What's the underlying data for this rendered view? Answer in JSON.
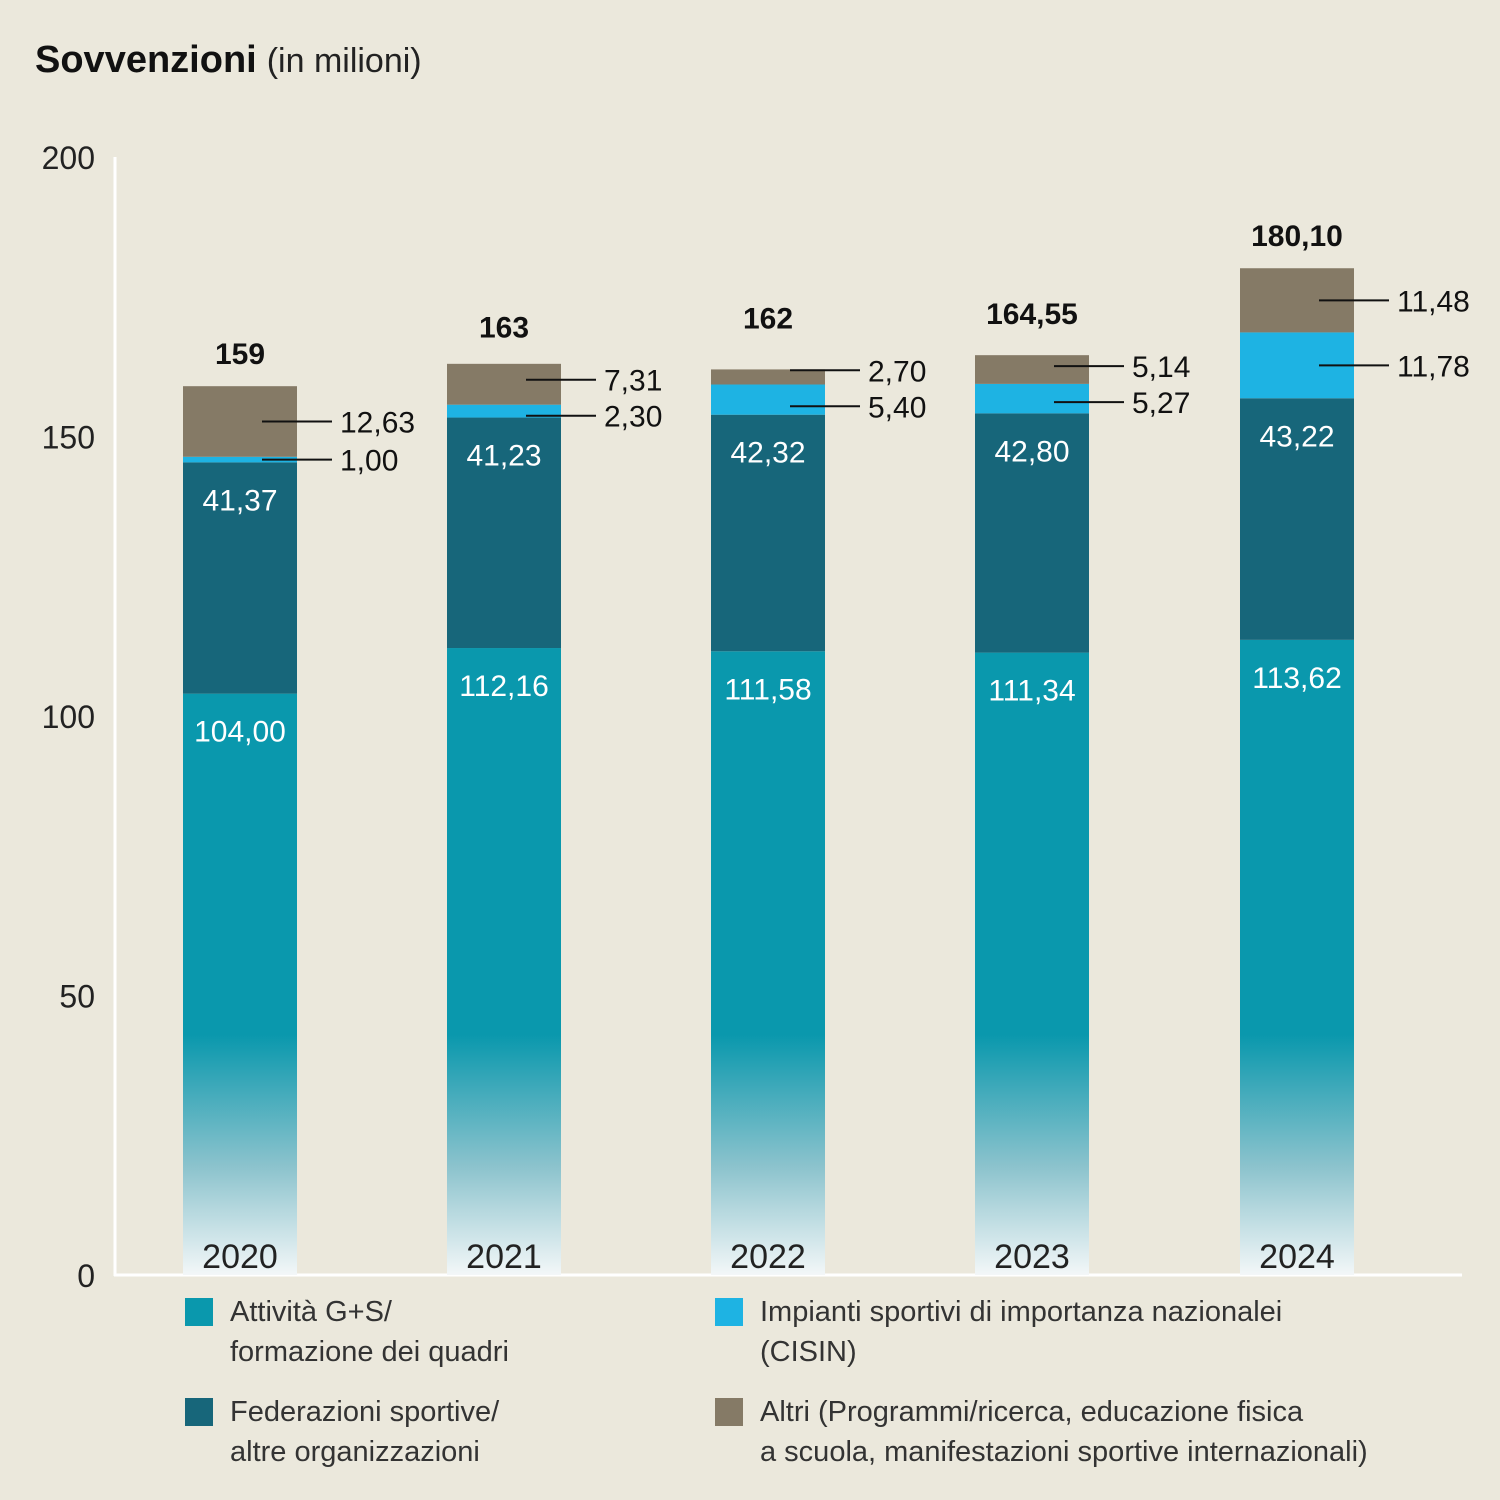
{
  "chart_data": {
    "type": "bar",
    "stacked": true,
    "title": "Sovvenzioni",
    "subtitle": "(in milioni)",
    "categories": [
      "2020",
      "2021",
      "2022",
      "2023",
      "2024"
    ],
    "ylim": [
      0,
      200
    ],
    "yticks": [
      "0",
      "50",
      "100",
      "150",
      "200"
    ],
    "grid": false,
    "legend_position": "bottom",
    "totals": [
      "159",
      "163",
      "162",
      "164,55",
      "180,10"
    ],
    "series": [
      {
        "name": "Attività G+S/ formazione dei quadri",
        "legend_lines": [
          "Attività G+S/",
          "formazione dei quadri"
        ],
        "color": "#0a98ad",
        "values": [
          104.0,
          112.16,
          111.58,
          111.34,
          113.62
        ],
        "labels": [
          "104,00",
          "112,16",
          "111,58",
          "111,34",
          "113,62"
        ]
      },
      {
        "name": "Federazioni sportive/ altre organizzazioni",
        "legend_lines": [
          "Federazioni sportive/",
          "altre organizzazioni"
        ],
        "color": "#17667a",
        "values": [
          41.37,
          41.23,
          42.32,
          42.8,
          43.22
        ],
        "labels": [
          "41,37",
          "41,23",
          "42,32",
          "42,80",
          "43,22"
        ]
      },
      {
        "name": "Impianti sportivi di importanza nazionalei (CISIN)",
        "legend_lines": [
          "Impianti sportivi di importanza nazionalei",
          "(CISIN)"
        ],
        "color": "#1eb3e3",
        "values": [
          1.0,
          2.3,
          5.4,
          5.27,
          11.78
        ],
        "labels": [
          "1,00",
          "2,30",
          "5,40",
          "5,27",
          "11,78"
        ]
      },
      {
        "name": "Altri (Programmi/ricerca, educazione fisica a scuola, manifestazioni sportive internazionali)",
        "legend_lines": [
          "Altri (Programmi/ricerca, educazione fisica",
          "a scuola, manifestazioni sportive internazionali)"
        ],
        "color": "#857a66",
        "values": [
          12.63,
          7.31,
          2.7,
          5.14,
          11.48
        ],
        "labels": [
          "12,63",
          "7,31",
          "2,70",
          "5,14",
          "11,48"
        ]
      }
    ]
  }
}
